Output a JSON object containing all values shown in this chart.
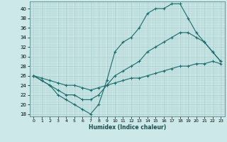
{
  "xlabel": "Humidex (Indice chaleur)",
  "ylabel": "",
  "xlim": [
    -0.5,
    23.5
  ],
  "ylim": [
    17.5,
    41.5
  ],
  "yticks": [
    18,
    20,
    22,
    24,
    26,
    28,
    30,
    32,
    34,
    36,
    38,
    40
  ],
  "xticks": [
    0,
    1,
    2,
    3,
    4,
    5,
    6,
    7,
    8,
    9,
    10,
    11,
    12,
    13,
    14,
    15,
    16,
    17,
    18,
    19,
    20,
    21,
    22,
    23
  ],
  "bg_color": "#cce8e8",
  "grid_color": "#aacccc",
  "line_color": "#1a6b6b",
  "line1_x": [
    0,
    1,
    2,
    3,
    4,
    5,
    6,
    7,
    8,
    9,
    10,
    11,
    12,
    13,
    14,
    15,
    16,
    17,
    18,
    19,
    20,
    21,
    22,
    23
  ],
  "line1_y": [
    26,
    25,
    24,
    22,
    21,
    20,
    19,
    18,
    20,
    25,
    31,
    33,
    34,
    36,
    39,
    40,
    40,
    41,
    41,
    38,
    35,
    33,
    31,
    29
  ],
  "line2_x": [
    0,
    1,
    2,
    3,
    4,
    5,
    6,
    7,
    8,
    9,
    10,
    11,
    12,
    13,
    14,
    15,
    16,
    17,
    18,
    19,
    20,
    21,
    22,
    23
  ],
  "line2_y": [
    26,
    25,
    24,
    23,
    22,
    22,
    21,
    21,
    22,
    24,
    26,
    27,
    28,
    29,
    31,
    32,
    33,
    34,
    35,
    35,
    34,
    33,
    31,
    29
  ],
  "line3_x": [
    0,
    1,
    2,
    3,
    4,
    5,
    6,
    7,
    8,
    9,
    10,
    11,
    12,
    13,
    14,
    15,
    16,
    17,
    18,
    19,
    20,
    21,
    22,
    23
  ],
  "line3_y": [
    26,
    25.5,
    25,
    24.5,
    24,
    24,
    23.5,
    23,
    23.5,
    24,
    24.5,
    25,
    25.5,
    25.5,
    26,
    26.5,
    27,
    27.5,
    28,
    28,
    28.5,
    28.5,
    29,
    28.5
  ]
}
